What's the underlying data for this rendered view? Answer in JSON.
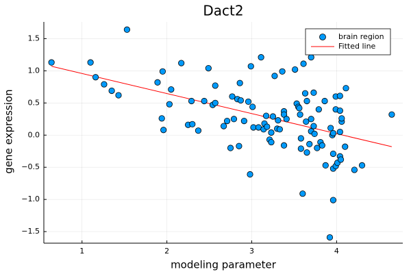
{
  "chart_data": {
    "type": "scatter",
    "title": "Dact2",
    "xlabel": "modeling parameter",
    "ylabel": "gene expression",
    "xlim": [
      0.55,
      4.78
    ],
    "ylim": [
      -1.68,
      1.76
    ],
    "grid": true,
    "legend_position": "top-right",
    "x_ticks": [
      1,
      2,
      3,
      4
    ],
    "x_tick_labels": [
      "1",
      "2",
      "3",
      "4"
    ],
    "y_ticks": [
      1.5,
      1.0,
      0.5,
      0.0,
      -0.5,
      -1.0,
      -1.5
    ],
    "y_tick_labels": [
      "1.5",
      "1.0",
      "0.5",
      "0.0",
      "−0.5",
      "−1.0",
      "−1.5"
    ],
    "series": [
      {
        "name": "brain region",
        "type": "scatter",
        "color": "#009AFA",
        "points": [
          [
            0.64,
            1.13
          ],
          [
            1.1,
            1.13
          ],
          [
            1.16,
            0.9
          ],
          [
            1.26,
            0.79
          ],
          [
            1.35,
            0.69
          ],
          [
            1.43,
            0.62
          ],
          [
            1.53,
            1.64
          ],
          [
            1.89,
            0.82
          ],
          [
            1.95,
            0.99
          ],
          [
            1.94,
            0.26
          ],
          [
            1.96,
            0.08
          ],
          [
            2.03,
            0.48
          ],
          [
            2.05,
            0.71
          ],
          [
            2.17,
            1.12
          ],
          [
            2.25,
            0.16
          ],
          [
            2.29,
            0.53
          ],
          [
            2.3,
            0.17
          ],
          [
            2.37,
            0.07
          ],
          [
            2.44,
            0.53
          ],
          [
            2.49,
            1.04
          ],
          [
            2.54,
            0.47
          ],
          [
            2.57,
            0.77
          ],
          [
            2.57,
            0.5
          ],
          [
            2.67,
            0.14
          ],
          [
            2.71,
            0.22
          ],
          [
            2.75,
            -0.2
          ],
          [
            2.77,
            0.6
          ],
          [
            2.79,
            0.25
          ],
          [
            2.83,
            0.56
          ],
          [
            2.85,
            -0.17
          ],
          [
            2.86,
            0.81
          ],
          [
            2.87,
            0.54
          ],
          [
            2.91,
            0.22
          ],
          [
            2.96,
            0.52
          ],
          [
            2.99,
            1.07
          ],
          [
            2.98,
            -0.61
          ],
          [
            3.01,
            0.44
          ],
          [
            3.02,
            0.12
          ],
          [
            3.08,
            0.12
          ],
          [
            3.11,
            1.21
          ],
          [
            3.14,
            0.09
          ],
          [
            3.15,
            0.18
          ],
          [
            3.17,
            0.3
          ],
          [
            3.18,
            0.13
          ],
          [
            3.21,
            -0.07
          ],
          [
            3.23,
            0.04
          ],
          [
            3.23,
            -0.11
          ],
          [
            3.25,
            0.29
          ],
          [
            3.27,
            0.92
          ],
          [
            3.3,
            0.1
          ],
          [
            3.31,
            0.23
          ],
          [
            3.33,
            0.09
          ],
          [
            3.36,
            0.99
          ],
          [
            3.38,
            0.37
          ],
          [
            3.38,
            0.32
          ],
          [
            3.38,
            -0.16
          ],
          [
            3.41,
            0.25
          ],
          [
            3.51,
            1.02
          ],
          [
            3.53,
            0.49
          ],
          [
            3.55,
            0.44
          ],
          [
            3.56,
            0.42
          ],
          [
            3.57,
            0.32
          ],
          [
            3.58,
            -0.05
          ],
          [
            3.58,
            -0.21
          ],
          [
            3.61,
            1.11
          ],
          [
            3.6,
            -0.91
          ],
          [
            3.63,
            0.65
          ],
          [
            3.64,
            0.21
          ],
          [
            3.65,
            -0.27
          ],
          [
            3.65,
            0.53
          ],
          [
            3.68,
            -0.14
          ],
          [
            3.7,
            0.25
          ],
          [
            3.7,
            0.06
          ],
          [
            3.7,
            1.21
          ],
          [
            3.73,
            0.66
          ],
          [
            3.73,
            0.14
          ],
          [
            3.74,
            0.02
          ],
          [
            3.77,
            -0.2
          ],
          [
            3.79,
            0.4
          ],
          [
            3.81,
            -0.11
          ],
          [
            3.83,
            -0.16
          ],
          [
            3.86,
            0.53
          ],
          [
            3.87,
            -0.47
          ],
          [
            3.93,
            0.11
          ],
          [
            3.92,
            -1.59
          ],
          [
            3.95,
            0.0
          ],
          [
            3.96,
            0.03
          ],
          [
            3.96,
            -1.01
          ],
          [
            3.96,
            -0.29
          ],
          [
            3.96,
            -0.52
          ],
          [
            3.99,
            0.4
          ],
          [
            3.99,
            0.6
          ],
          [
            3.99,
            -0.48
          ],
          [
            4.01,
            -0.43
          ],
          [
            4.04,
            0.61
          ],
          [
            4.04,
            0.05
          ],
          [
            4.04,
            0.38
          ],
          [
            4.04,
            -0.33
          ],
          [
            4.05,
            -0.38
          ],
          [
            4.06,
            0.21
          ],
          [
            4.06,
            0.26
          ],
          [
            4.11,
            0.73
          ],
          [
            4.1,
            -0.18
          ],
          [
            4.21,
            -0.54
          ],
          [
            4.3,
            -0.47
          ],
          [
            4.65,
            0.32
          ]
        ]
      },
      {
        "name": "Fitted line",
        "type": "line",
        "color": "#FF0000",
        "points": [
          [
            0.64,
            1.07
          ],
          [
            4.65,
            -0.18
          ]
        ]
      }
    ]
  }
}
